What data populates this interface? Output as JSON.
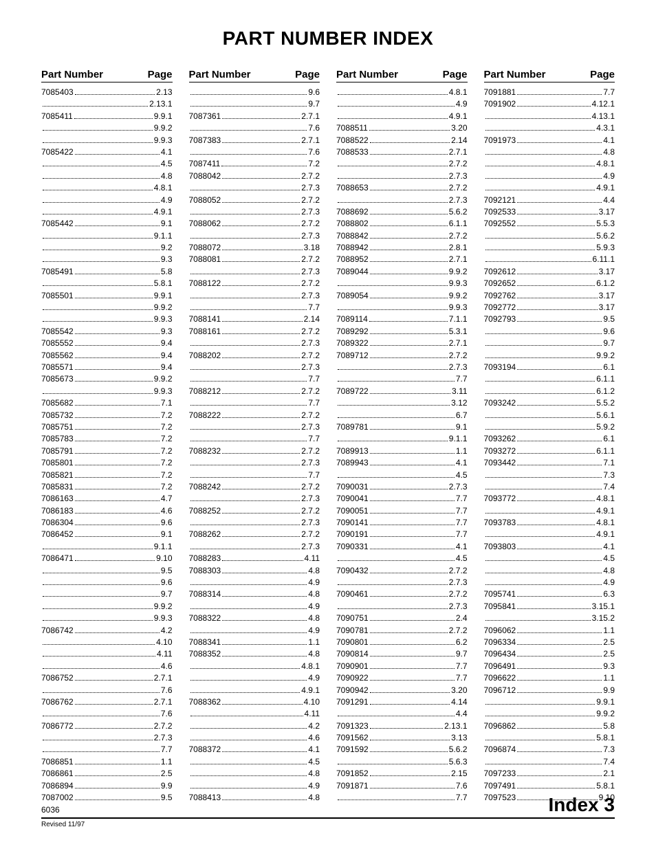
{
  "title": "PART NUMBER INDEX",
  "header": {
    "partNumber": "Part Number",
    "page": "Page"
  },
  "footer": {
    "model": "6036",
    "indexLabel": "Index 3",
    "revised": "Revised 11/97"
  },
  "columns": [
    [
      {
        "pn": "7085403",
        "pg": "2.13"
      },
      {
        "pn": "",
        "pg": "2.13.1"
      },
      {
        "pn": "7085411",
        "pg": "9.9.1"
      },
      {
        "pn": "",
        "pg": "9.9.2"
      },
      {
        "pn": "",
        "pg": "9.9.3"
      },
      {
        "pn": "7085422",
        "pg": "4.1"
      },
      {
        "pn": "",
        "pg": "4.5"
      },
      {
        "pn": "",
        "pg": "4.8"
      },
      {
        "pn": "",
        "pg": "4.8.1"
      },
      {
        "pn": "",
        "pg": "4.9"
      },
      {
        "pn": "",
        "pg": "4.9.1"
      },
      {
        "pn": "7085442",
        "pg": "9.1"
      },
      {
        "pn": "",
        "pg": "9.1.1"
      },
      {
        "pn": "",
        "pg": "9.2"
      },
      {
        "pn": "",
        "pg": "9.3"
      },
      {
        "pn": "7085491",
        "pg": "5.8"
      },
      {
        "pn": "",
        "pg": "5.8.1"
      },
      {
        "pn": "7085501",
        "pg": "9.9.1"
      },
      {
        "pn": "",
        "pg": "9.9.2"
      },
      {
        "pn": "",
        "pg": "9.9.3"
      },
      {
        "pn": "7085542",
        "pg": "9.3"
      },
      {
        "pn": "7085552",
        "pg": "9.4"
      },
      {
        "pn": "7085562",
        "pg": "9.4"
      },
      {
        "pn": "7085571",
        "pg": "9.4"
      },
      {
        "pn": "7085673",
        "pg": "9.9.2"
      },
      {
        "pn": "",
        "pg": "9.9.3"
      },
      {
        "pn": "7085682",
        "pg": "7.1"
      },
      {
        "pn": "7085732",
        "pg": "7.2"
      },
      {
        "pn": "7085751",
        "pg": "7.2"
      },
      {
        "pn": "7085783",
        "pg": "7.2"
      },
      {
        "pn": "7085791",
        "pg": "7.2"
      },
      {
        "pn": "7085801",
        "pg": "7.2"
      },
      {
        "pn": "7085821",
        "pg": "7.2"
      },
      {
        "pn": "7085831",
        "pg": "7.2"
      },
      {
        "pn": "7086163",
        "pg": "4.7"
      },
      {
        "pn": "7086183",
        "pg": "4.6"
      },
      {
        "pn": "7086304",
        "pg": "9.6"
      },
      {
        "pn": "7086452",
        "pg": "9.1"
      },
      {
        "pn": "",
        "pg": "9.1.1"
      },
      {
        "pn": "7086471",
        "pg": "9.10"
      },
      {
        "pn": "",
        "pg": "9.5"
      },
      {
        "pn": "",
        "pg": "9.6"
      },
      {
        "pn": "",
        "pg": "9.7"
      },
      {
        "pn": "",
        "pg": "9.9.2"
      },
      {
        "pn": "",
        "pg": "9.9.3"
      },
      {
        "pn": "7086742",
        "pg": "4.2"
      },
      {
        "pn": "",
        "pg": "4.10"
      },
      {
        "pn": "",
        "pg": "4.11"
      },
      {
        "pn": "",
        "pg": "4.6"
      },
      {
        "pn": "7086752",
        "pg": "2.7.1"
      },
      {
        "pn": "",
        "pg": "7.6"
      },
      {
        "pn": "7086762",
        "pg": "2.7.1"
      },
      {
        "pn": "",
        "pg": "7.6"
      },
      {
        "pn": "7086772",
        "pg": "2.7.2"
      },
      {
        "pn": "",
        "pg": "2.7.3"
      },
      {
        "pn": "",
        "pg": "7.7"
      },
      {
        "pn": "7086851",
        "pg": "1.1"
      },
      {
        "pn": "7086861",
        "pg": "2.5"
      },
      {
        "pn": "7086894",
        "pg": "9.9"
      },
      {
        "pn": "7087002",
        "pg": "9.5"
      }
    ],
    [
      {
        "pn": "",
        "pg": "9.6"
      },
      {
        "pn": "",
        "pg": "9.7"
      },
      {
        "pn": "7087361",
        "pg": "2.7.1"
      },
      {
        "pn": "",
        "pg": "7.6"
      },
      {
        "pn": "7087383",
        "pg": "2.7.1"
      },
      {
        "pn": "",
        "pg": "7.6"
      },
      {
        "pn": "7087411",
        "pg": "7.2"
      },
      {
        "pn": "7088042",
        "pg": "2.7.2"
      },
      {
        "pn": "",
        "pg": "2.7.3"
      },
      {
        "pn": "7088052",
        "pg": "2.7.2"
      },
      {
        "pn": "",
        "pg": "2.7.3"
      },
      {
        "pn": "7088062",
        "pg": "2.7.2"
      },
      {
        "pn": "",
        "pg": "2.7.3"
      },
      {
        "pn": "7088072",
        "pg": "3.18"
      },
      {
        "pn": "7088081",
        "pg": "2.7.2"
      },
      {
        "pn": "",
        "pg": "2.7.3"
      },
      {
        "pn": "7088122",
        "pg": "2.7.2"
      },
      {
        "pn": "",
        "pg": "2.7.3"
      },
      {
        "pn": "",
        "pg": "7.7"
      },
      {
        "pn": "7088141",
        "pg": "2.14"
      },
      {
        "pn": "7088161",
        "pg": "2.7.2"
      },
      {
        "pn": "",
        "pg": "2.7.3"
      },
      {
        "pn": "7088202",
        "pg": "2.7.2"
      },
      {
        "pn": "",
        "pg": "2.7.3"
      },
      {
        "pn": "",
        "pg": "7.7"
      },
      {
        "pn": "7088212",
        "pg": "2.7.2"
      },
      {
        "pn": "",
        "pg": "7.7"
      },
      {
        "pn": "7088222",
        "pg": "2.7.2"
      },
      {
        "pn": "",
        "pg": "2.7.3"
      },
      {
        "pn": "",
        "pg": "7.7"
      },
      {
        "pn": "7088232",
        "pg": "2.7.2"
      },
      {
        "pn": "",
        "pg": "2.7.3"
      },
      {
        "pn": "",
        "pg": "7.7"
      },
      {
        "pn": "7088242",
        "pg": "2.7.2"
      },
      {
        "pn": "",
        "pg": "2.7.3"
      },
      {
        "pn": "7088252",
        "pg": "2.7.2"
      },
      {
        "pn": "",
        "pg": "2.7.3"
      },
      {
        "pn": "7088262",
        "pg": "2.7.2"
      },
      {
        "pn": "",
        "pg": "2.7.3"
      },
      {
        "pn": "7088283",
        "pg": "4.11"
      },
      {
        "pn": "7088303",
        "pg": "4.8"
      },
      {
        "pn": "",
        "pg": "4.9"
      },
      {
        "pn": "7088314",
        "pg": "4.8"
      },
      {
        "pn": "",
        "pg": "4.9"
      },
      {
        "pn": "7088322",
        "pg": "4.8"
      },
      {
        "pn": "",
        "pg": "4.9"
      },
      {
        "pn": "7088341",
        "pg": "1.1"
      },
      {
        "pn": "7088352",
        "pg": "4.8"
      },
      {
        "pn": "",
        "pg": "4.8.1"
      },
      {
        "pn": "",
        "pg": "4.9"
      },
      {
        "pn": "",
        "pg": "4.9.1"
      },
      {
        "pn": "7088362",
        "pg": "4.10"
      },
      {
        "pn": "",
        "pg": "4.11"
      },
      {
        "pn": "",
        "pg": "4.2"
      },
      {
        "pn": "",
        "pg": "4.6"
      },
      {
        "pn": "7088372",
        "pg": "4.1"
      },
      {
        "pn": "",
        "pg": "4.5"
      },
      {
        "pn": "",
        "pg": "4.8"
      },
      {
        "pn": "",
        "pg": "4.9"
      },
      {
        "pn": "7088413",
        "pg": "4.8"
      }
    ],
    [
      {
        "pn": "",
        "pg": "4.8.1"
      },
      {
        "pn": "",
        "pg": "4.9"
      },
      {
        "pn": "",
        "pg": "4.9.1"
      },
      {
        "pn": "7088511",
        "pg": "3.20"
      },
      {
        "pn": "7088522",
        "pg": "2.14"
      },
      {
        "pn": "7088533",
        "pg": "2.7.1"
      },
      {
        "pn": "",
        "pg": "2.7.2"
      },
      {
        "pn": "",
        "pg": "2.7.3"
      },
      {
        "pn": "7088653",
        "pg": "2.7.2"
      },
      {
        "pn": "",
        "pg": "2.7.3"
      },
      {
        "pn": "7088692",
        "pg": "5.6.2"
      },
      {
        "pn": "7088802",
        "pg": "6.1.1"
      },
      {
        "pn": "7088842",
        "pg": "2.7.2"
      },
      {
        "pn": "7088942",
        "pg": "2.8.1"
      },
      {
        "pn": "7088952",
        "pg": "2.7.1"
      },
      {
        "pn": "7089044",
        "pg": "9.9.2"
      },
      {
        "pn": "",
        "pg": "9.9.3"
      },
      {
        "pn": "7089054",
        "pg": "9.9.2"
      },
      {
        "pn": "",
        "pg": "9.9.3"
      },
      {
        "pn": "7089114",
        "pg": "7.1.1"
      },
      {
        "pn": "7089292",
        "pg": "5.3.1"
      },
      {
        "pn": "7089322",
        "pg": "2.7.1"
      },
      {
        "pn": "7089712",
        "pg": "2.7.2"
      },
      {
        "pn": "",
        "pg": "2.7.3"
      },
      {
        "pn": "",
        "pg": "7.7"
      },
      {
        "pn": "7089722",
        "pg": "3.11"
      },
      {
        "pn": "",
        "pg": "3.12"
      },
      {
        "pn": "",
        "pg": "6.7"
      },
      {
        "pn": "7089781",
        "pg": "9.1"
      },
      {
        "pn": "",
        "pg": "9.1.1"
      },
      {
        "pn": "7089913",
        "pg": "1.1"
      },
      {
        "pn": "7089943",
        "pg": "4.1"
      },
      {
        "pn": "",
        "pg": "4.5"
      },
      {
        "pn": "7090031",
        "pg": "2.7.3"
      },
      {
        "pn": "7090041",
        "pg": "7.7"
      },
      {
        "pn": "7090051",
        "pg": "7.7"
      },
      {
        "pn": "7090141",
        "pg": "7.7"
      },
      {
        "pn": "7090191",
        "pg": "7.7"
      },
      {
        "pn": "7090331",
        "pg": "4.1"
      },
      {
        "pn": "",
        "pg": "4.5"
      },
      {
        "pn": "7090432",
        "pg": "2.7.2"
      },
      {
        "pn": "",
        "pg": "2.7.3"
      },
      {
        "pn": "7090461",
        "pg": "2.7.2"
      },
      {
        "pn": "",
        "pg": "2.7.3"
      },
      {
        "pn": "7090751",
        "pg": "2.4"
      },
      {
        "pn": "7090781",
        "pg": "2.7.2"
      },
      {
        "pn": "7090801",
        "pg": "6.2"
      },
      {
        "pn": "7090814",
        "pg": "9.7"
      },
      {
        "pn": "7090901",
        "pg": "7.7"
      },
      {
        "pn": "7090922",
        "pg": "7.7"
      },
      {
        "pn": "7090942",
        "pg": "3.20"
      },
      {
        "pn": "7091291",
        "pg": "4.14"
      },
      {
        "pn": "",
        "pg": "4.4"
      },
      {
        "pn": "7091323",
        "pg": "2.13.1"
      },
      {
        "pn": "7091562",
        "pg": "3.13"
      },
      {
        "pn": "7091592",
        "pg": "5.6.2"
      },
      {
        "pn": "",
        "pg": "5.6.3"
      },
      {
        "pn": "7091852",
        "pg": "2.15"
      },
      {
        "pn": "7091871",
        "pg": "7.6"
      },
      {
        "pn": "",
        "pg": "7.7"
      }
    ],
    [
      {
        "pn": "7091881",
        "pg": "7.7"
      },
      {
        "pn": "7091902",
        "pg": "4.12.1"
      },
      {
        "pn": "",
        "pg": "4.13.1"
      },
      {
        "pn": "",
        "pg": "4.3.1"
      },
      {
        "pn": "7091973",
        "pg": "4.1"
      },
      {
        "pn": "",
        "pg": "4.8"
      },
      {
        "pn": "",
        "pg": "4.8.1"
      },
      {
        "pn": "",
        "pg": "4.9"
      },
      {
        "pn": "",
        "pg": "4.9.1"
      },
      {
        "pn": "7092121",
        "pg": "4.4"
      },
      {
        "pn": "7092533",
        "pg": "3.17"
      },
      {
        "pn": "7092552",
        "pg": "5.5.3"
      },
      {
        "pn": "",
        "pg": "5.6.2"
      },
      {
        "pn": "",
        "pg": "5.9.3"
      },
      {
        "pn": "",
        "pg": "6.11.1"
      },
      {
        "pn": "7092612",
        "pg": "3.17"
      },
      {
        "pn": "7092652",
        "pg": "6.1.2"
      },
      {
        "pn": "7092762",
        "pg": "3.17"
      },
      {
        "pn": "7092772",
        "pg": "3.17"
      },
      {
        "pn": "7092793",
        "pg": "9.5"
      },
      {
        "pn": "",
        "pg": "9.6"
      },
      {
        "pn": "",
        "pg": "9.7"
      },
      {
        "pn": "",
        "pg": "9.9.2"
      },
      {
        "pn": "7093194",
        "pg": "6.1"
      },
      {
        "pn": "",
        "pg": "6.1.1"
      },
      {
        "pn": "",
        "pg": "6.1.2"
      },
      {
        "pn": "7093242",
        "pg": "5.5.2"
      },
      {
        "pn": "",
        "pg": "5.6.1"
      },
      {
        "pn": "",
        "pg": "5.9.2"
      },
      {
        "pn": "7093262",
        "pg": "6.1"
      },
      {
        "pn": "7093272",
        "pg": "6.1.1"
      },
      {
        "pn": "7093442",
        "pg": "7.1"
      },
      {
        "pn": "",
        "pg": "7.3"
      },
      {
        "pn": "",
        "pg": "7.4"
      },
      {
        "pn": "7093772",
        "pg": "4.8.1"
      },
      {
        "pn": "",
        "pg": "4.9.1"
      },
      {
        "pn": "7093783",
        "pg": "4.8.1"
      },
      {
        "pn": "",
        "pg": "4.9.1"
      },
      {
        "pn": "7093803",
        "pg": "4.1"
      },
      {
        "pn": "",
        "pg": "4.5"
      },
      {
        "pn": "",
        "pg": "4.8"
      },
      {
        "pn": "",
        "pg": "4.9"
      },
      {
        "pn": "7095741",
        "pg": "6.3"
      },
      {
        "pn": "7095841",
        "pg": "3.15.1"
      },
      {
        "pn": "",
        "pg": "3.15.2"
      },
      {
        "pn": "7096062",
        "pg": "1.1"
      },
      {
        "pn": "7096334",
        "pg": "2.5"
      },
      {
        "pn": "7096434",
        "pg": "2.5"
      },
      {
        "pn": "7096491",
        "pg": "9.3"
      },
      {
        "pn": "7096622",
        "pg": "1.1"
      },
      {
        "pn": "7096712",
        "pg": "9.9"
      },
      {
        "pn": "",
        "pg": "9.9.1"
      },
      {
        "pn": "",
        "pg": "9.9.2"
      },
      {
        "pn": "7096862",
        "pg": "5.8"
      },
      {
        "pn": "",
        "pg": "5.8.1"
      },
      {
        "pn": "7096874",
        "pg": "7.3"
      },
      {
        "pn": "",
        "pg": "7.4"
      },
      {
        "pn": "7097233",
        "pg": "2.1"
      },
      {
        "pn": "7097491",
        "pg": "5.8.1"
      },
      {
        "pn": "7097523",
        "pg": "9.10"
      }
    ]
  ]
}
